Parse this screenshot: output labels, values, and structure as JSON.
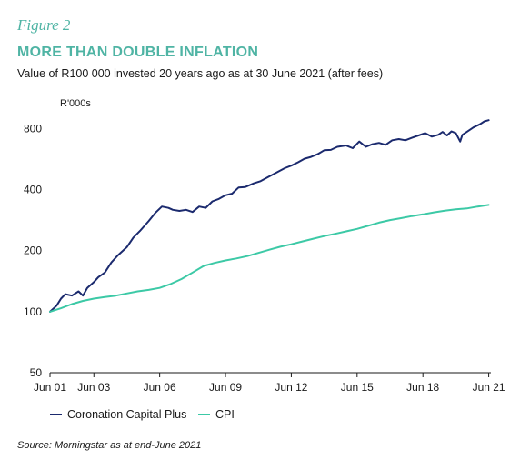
{
  "header": {
    "figure_label": "Figure 2",
    "title": "MORE THAN DOUBLE INFLATION",
    "subtitle": "Value of R100 000 invested 20 years ago as at 30 June 2021 (after fees)"
  },
  "source": "Source: Morningstar as at end-June 2021",
  "colors": {
    "accent": "#4fb4a4",
    "coronation": "#1b2a6e",
    "cpi": "#3cc9a6",
    "axis": "#1a1a1a"
  },
  "chart_data": {
    "type": "line",
    "title": "MORE THAN DOUBLE INFLATION",
    "subtitle": "Value of R100 000 invested 20 years ago as at 30 June 2021 (after fees)",
    "ylabel": "R'000s",
    "xlabel": "",
    "y_scale": "log",
    "ylim": [
      50,
      900
    ],
    "xlim": [
      2001.5,
      2021.6
    ],
    "y_ticks": [
      50,
      100,
      200,
      400,
      800
    ],
    "x_ticks": [
      {
        "label": "Jun 01",
        "value": 2001.5
      },
      {
        "label": "Jun 03",
        "value": 2003.5
      },
      {
        "label": "Jun 06",
        "value": 2006.5
      },
      {
        "label": "Jun 09",
        "value": 2009.5
      },
      {
        "label": "Jun 12",
        "value": 2012.5
      },
      {
        "label": "Jun 15",
        "value": 2015.5
      },
      {
        "label": "Jun 18",
        "value": 2018.5
      },
      {
        "label": "Jun 21",
        "value": 2021.5
      }
    ],
    "grid": false,
    "legend_position": "bottom-left",
    "series": [
      {
        "name": "Coronation Capital Plus",
        "color": "#1b2a6e",
        "x": [
          2001.5,
          2001.8,
          2002.0,
          2002.2,
          2002.5,
          2002.8,
          2003.0,
          2003.2,
          2003.5,
          2003.7,
          2004.0,
          2004.3,
          2004.6,
          2005.0,
          2005.3,
          2005.6,
          2006.0,
          2006.3,
          2006.6,
          2006.9,
          2007.1,
          2007.4,
          2007.7,
          2008.0,
          2008.3,
          2008.6,
          2008.9,
          2009.2,
          2009.5,
          2009.8,
          2010.1,
          2010.4,
          2010.8,
          2011.1,
          2011.5,
          2011.9,
          2012.2,
          2012.5,
          2012.8,
          2013.1,
          2013.4,
          2013.7,
          2014.0,
          2014.3,
          2014.6,
          2015.0,
          2015.3,
          2015.6,
          2015.9,
          2016.2,
          2016.5,
          2016.8,
          2017.1,
          2017.4,
          2017.7,
          2018.0,
          2018.3,
          2018.6,
          2018.9,
          2019.2,
          2019.4,
          2019.6,
          2019.8,
          2020.0,
          2020.2,
          2020.3,
          2020.5,
          2020.8,
          2021.1,
          2021.3,
          2021.5
        ],
        "y": [
          100,
          107,
          116,
          122,
          120,
          126,
          120,
          131,
          140,
          148,
          156,
          175,
          190,
          208,
          232,
          250,
          280,
          307,
          330,
          325,
          318,
          314,
          318,
          310,
          330,
          325,
          350,
          360,
          375,
          382,
          410,
          412,
          430,
          440,
          465,
          490,
          510,
          525,
          545,
          568,
          580,
          598,
          625,
          628,
          650,
          660,
          640,
          690,
          650,
          670,
          680,
          665,
          700,
          710,
          700,
          720,
          740,
          760,
          730,
          745,
          770,
          740,
          775,
          760,
          690,
          745,
          770,
          810,
          840,
          868,
          880
        ]
      },
      {
        "name": "CPI",
        "color": "#3cc9a6",
        "x": [
          2001.5,
          2002.0,
          2002.5,
          2003.0,
          2003.5,
          2004.0,
          2004.5,
          2005.0,
          2005.5,
          2006.0,
          2006.5,
          2007.0,
          2007.5,
          2008.0,
          2008.5,
          2009.0,
          2009.5,
          2010.0,
          2010.5,
          2011.0,
          2011.5,
          2012.0,
          2012.5,
          2013.0,
          2013.5,
          2014.0,
          2014.5,
          2015.0,
          2015.5,
          2016.0,
          2016.5,
          2017.0,
          2017.5,
          2018.0,
          2018.5,
          2019.0,
          2019.5,
          2020.0,
          2020.5,
          2021.0,
          2021.5
        ],
        "y": [
          100,
          104,
          109,
          113,
          116,
          118,
          120,
          123,
          126,
          128,
          131,
          137,
          145,
          156,
          168,
          174,
          179,
          183,
          188,
          195,
          202,
          209,
          215,
          222,
          229,
          236,
          242,
          249,
          256,
          265,
          275,
          283,
          289,
          296,
          302,
          309,
          315,
          320,
          323,
          330,
          336
        ]
      }
    ]
  }
}
